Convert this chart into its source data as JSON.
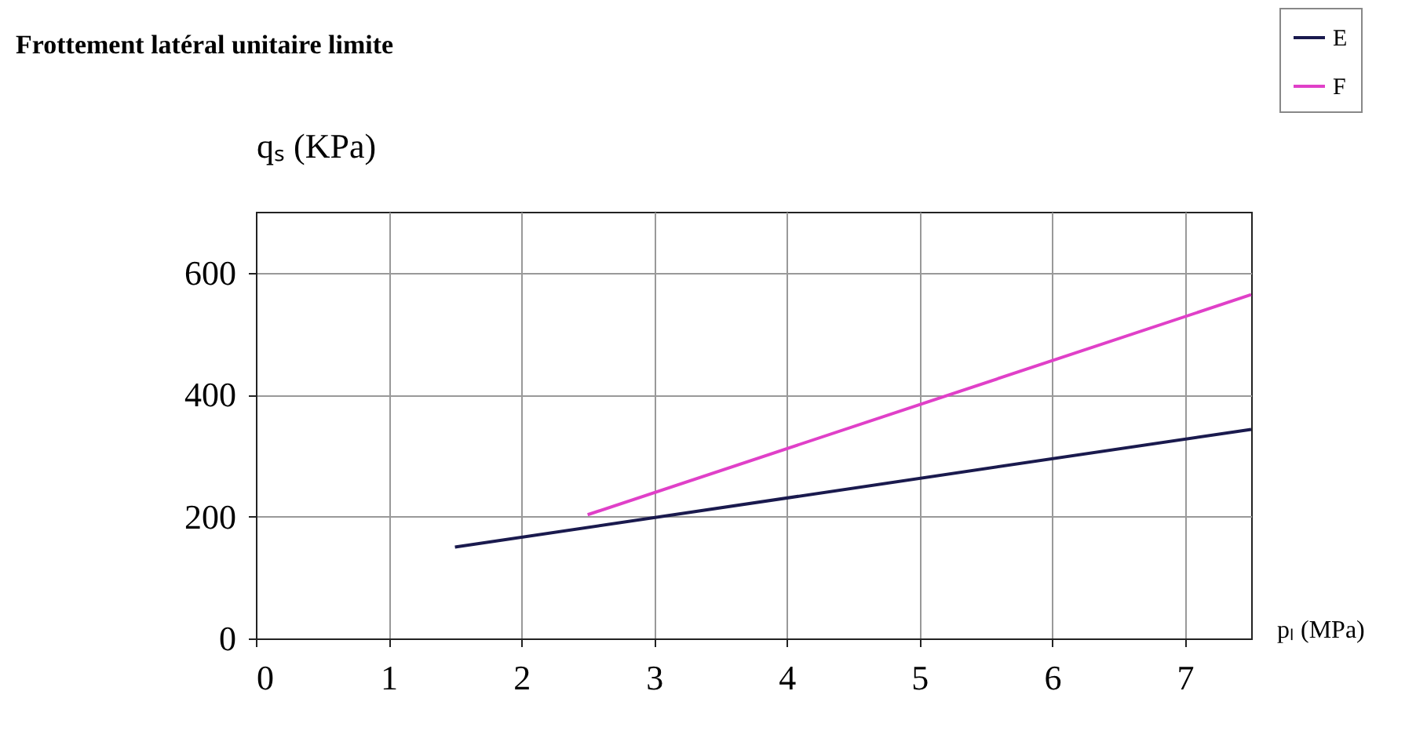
{
  "chart_data": {
    "type": "line",
    "title": "Frottement latéral unitaire limite",
    "xlabel": "pₗ (MPa)",
    "ylabel": "qₛ (KPa)",
    "series": [
      {
        "name": "E",
        "color": "#1a1a4e",
        "x": [
          1.5,
          7.5
        ],
        "values": [
          150,
          343
        ]
      },
      {
        "name": "F",
        "color": "#e040c8",
        "x": [
          2.5,
          7.5
        ],
        "values": [
          203,
          564
        ]
      }
    ],
    "xlim": [
      0,
      7.5
    ],
    "xticks": [
      0,
      1,
      2,
      3,
      4,
      5,
      6,
      7
    ],
    "ylim": [
      0,
      700
    ],
    "yticks": [
      0,
      200,
      400,
      600
    ],
    "grid": true,
    "legend": "top right",
    "marker": "none",
    "line_style": "solid"
  }
}
